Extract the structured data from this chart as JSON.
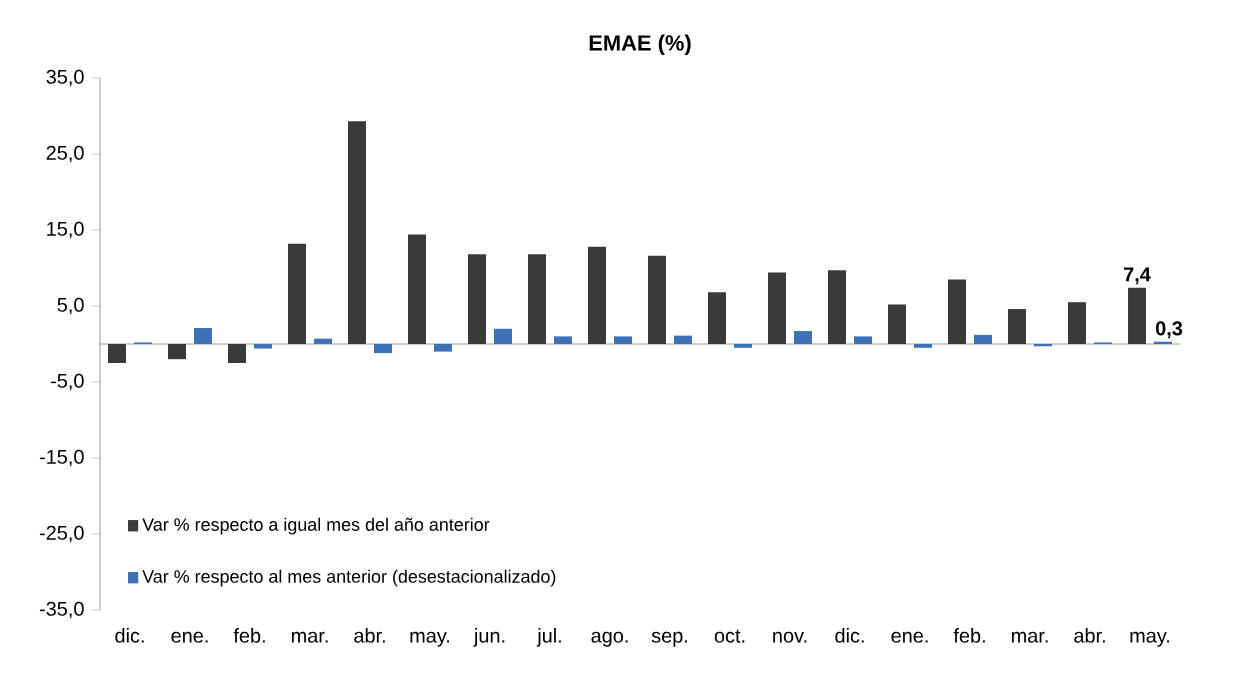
{
  "chart_data": {
    "type": "bar",
    "title": "EMAE (%)",
    "categories": [
      "dic.",
      "ene.",
      "feb.",
      "mar.",
      "abr.",
      "may.",
      "jun.",
      "jul.",
      "ago.",
      "sep.",
      "oct.",
      "nov.",
      "dic.",
      "ene.",
      "feb.",
      "mar.",
      "abr.",
      "may."
    ],
    "series": [
      {
        "name": "Var % respecto a igual mes del año anterior",
        "color": "#3a3a3a",
        "values": [
          -2.5,
          -2.0,
          -2.5,
          13.2,
          29.3,
          14.4,
          11.8,
          11.8,
          12.8,
          11.6,
          6.8,
          9.4,
          9.7,
          5.2,
          8.5,
          4.6,
          5.5,
          7.4
        ],
        "value_labels": [
          null,
          null,
          null,
          null,
          null,
          null,
          null,
          null,
          null,
          null,
          null,
          null,
          null,
          null,
          null,
          null,
          null,
          "7,4"
        ]
      },
      {
        "name": "Var % respecto al mes anterior (desestacionalizado)",
        "color": "#3e72b8",
        "values": [
          0.2,
          2.1,
          -0.6,
          0.7,
          -1.2,
          -1.0,
          2.0,
          1.0,
          1.0,
          1.1,
          -0.5,
          1.7,
          1.0,
          -0.5,
          1.2,
          -0.3,
          0.2,
          0.3
        ],
        "value_labels": [
          null,
          null,
          null,
          null,
          null,
          null,
          null,
          null,
          null,
          null,
          null,
          null,
          null,
          null,
          null,
          null,
          null,
          "0,3"
        ]
      }
    ],
    "ylim": [
      -35,
      35
    ],
    "yticks": [
      {
        "value": -35,
        "label": "-35,0"
      },
      {
        "value": -25,
        "label": "-25,0"
      },
      {
        "value": -15,
        "label": "-15,0"
      },
      {
        "value": -5,
        "label": "-5,0"
      },
      {
        "value": 5,
        "label": "5,0"
      },
      {
        "value": 15,
        "label": "15,0"
      },
      {
        "value": 25,
        "label": "25,0"
      },
      {
        "value": 35,
        "label": "35,0"
      }
    ],
    "grid": false,
    "legend": "bottom left"
  }
}
